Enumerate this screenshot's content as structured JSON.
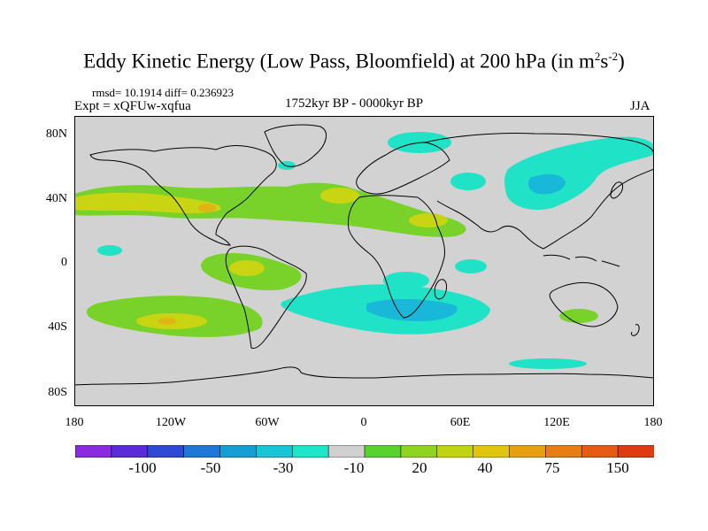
{
  "title": {
    "main": "Eddy Kinetic Energy (Low Pass, Bloomfield) at 200 hPa (in m",
    "sup1": "2",
    "mid": "s",
    "sup2": "-2",
    "end": ")"
  },
  "stats": "rmsd= 10.1914 diff= 0.236923",
  "experiment": "Expt = xQFUw-xqfua",
  "period": "1752kyr BP - 0000kyr BP",
  "season": "JJA",
  "axes": {
    "y_ticks": [
      "80N",
      "40N",
      "0",
      "40S",
      "80S"
    ],
    "x_ticks": [
      "180",
      "120W",
      "60W",
      "0",
      "60E",
      "120E",
      "180"
    ]
  },
  "colorbar": {
    "colors": [
      "#8a2be2",
      "#5a2bd8",
      "#2f49d6",
      "#1f78d8",
      "#149fd4",
      "#17c6d4",
      "#1ee6c8",
      "#d0d0d0",
      "#5ad22e",
      "#8fd41e",
      "#c1d412",
      "#e2c60e",
      "#e8a10e",
      "#e87e12",
      "#e65a14",
      "#e03a14"
    ],
    "labels": [
      "-100",
      "-50",
      "-30",
      "-10",
      "20",
      "40",
      "75",
      "150"
    ]
  },
  "palette": {
    "background": "#d2d2d2",
    "cyan": "#20e2c6",
    "blue": "#19b8d8",
    "green": "#78d22a",
    "yellow": "#c9d412",
    "orange": "#e0b414"
  }
}
